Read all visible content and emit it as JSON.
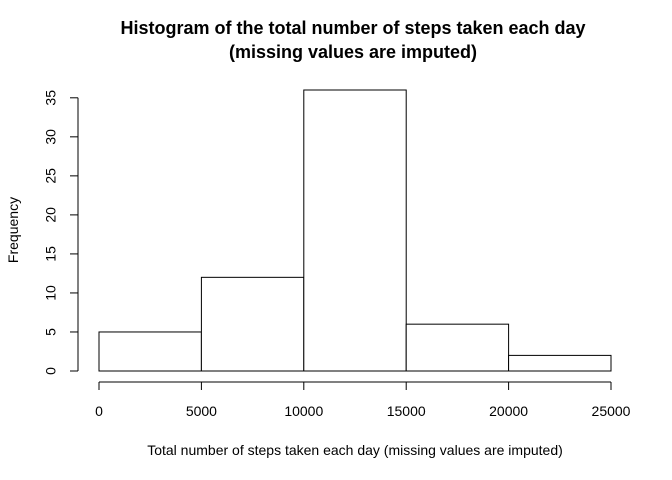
{
  "chart_data": {
    "type": "bar",
    "title": "Histogram of the total number of steps taken each day",
    "subtitle": "(missing values are imputed)",
    "xlabel": "Total number of steps taken each day  (missing values are imputed)",
    "ylabel": "Frequency",
    "bins": [
      {
        "from": 0,
        "to": 5000,
        "count": 5
      },
      {
        "from": 5000,
        "to": 10000,
        "count": 12
      },
      {
        "from": 10000,
        "to": 15000,
        "count": 36
      },
      {
        "from": 15000,
        "to": 20000,
        "count": 6
      },
      {
        "from": 20000,
        "to": 25000,
        "count": 2
      }
    ],
    "xlim": [
      0,
      25000
    ],
    "ylim": [
      0,
      36
    ],
    "xticks": [
      0,
      5000,
      10000,
      15000,
      20000,
      25000
    ],
    "yticks": [
      0,
      5,
      10,
      15,
      20,
      25,
      30,
      35
    ],
    "grid": false,
    "legend": "none",
    "bar_fill": "#ffffff",
    "bar_stroke": "#000000"
  }
}
